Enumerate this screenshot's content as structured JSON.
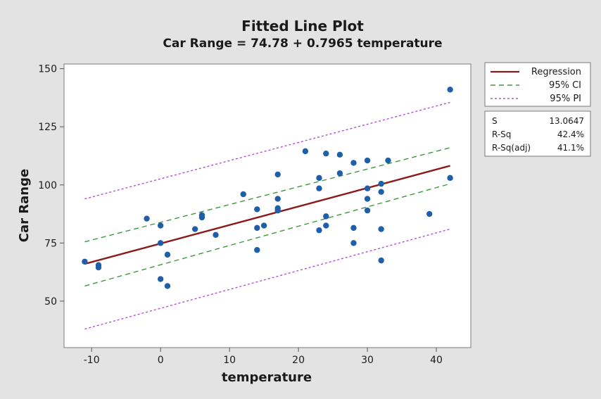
{
  "chart_data": {
    "type": "scatter",
    "title": "Fitted Line Plot",
    "subtitle": "Car Range = 74.78 + 0.7965 temperature",
    "xlabel": "temperature",
    "ylabel": "Car Range",
    "xlim": [
      -14,
      45
    ],
    "ylim": [
      30,
      152
    ],
    "xticks": [
      -10,
      0,
      10,
      20,
      30,
      40
    ],
    "yticks": [
      50,
      75,
      100,
      125,
      150
    ],
    "points": [
      [
        -11,
        67
      ],
      [
        -9,
        64.5
      ],
      [
        -9,
        65.5
      ],
      [
        -2,
        85.5
      ],
      [
        0,
        82.5
      ],
      [
        0,
        75
      ],
      [
        0,
        59.5
      ],
      [
        1,
        70
      ],
      [
        1,
        56.5
      ],
      [
        5,
        81
      ],
      [
        6,
        87
      ],
      [
        6,
        86
      ],
      [
        8,
        78.5
      ],
      [
        12,
        96
      ],
      [
        14,
        89.5
      ],
      [
        14,
        81.5
      ],
      [
        14,
        72
      ],
      [
        15,
        82.5
      ],
      [
        17,
        104.5
      ],
      [
        17,
        94
      ],
      [
        17,
        90
      ],
      [
        17,
        89
      ],
      [
        21,
        114.5
      ],
      [
        23,
        103
      ],
      [
        23,
        98.5
      ],
      [
        23,
        80.5
      ],
      [
        24,
        113.5
      ],
      [
        24,
        86.5
      ],
      [
        24,
        82.5
      ],
      [
        26,
        113
      ],
      [
        26,
        105
      ],
      [
        28,
        109.5
      ],
      [
        28,
        81.5
      ],
      [
        28,
        75
      ],
      [
        30,
        110.5
      ],
      [
        30,
        98.5
      ],
      [
        30,
        94
      ],
      [
        30,
        89
      ],
      [
        32,
        100.5
      ],
      [
        32,
        97
      ],
      [
        32,
        81
      ],
      [
        32,
        67.5
      ],
      [
        33,
        110.5
      ],
      [
        39,
        87.5
      ],
      [
        42,
        141
      ],
      [
        42,
        103
      ]
    ],
    "regression": {
      "intercept": 74.78,
      "slope": 0.7965,
      "x_range": [
        -11,
        42
      ]
    },
    "ci_band": {
      "x": [
        -11,
        42
      ],
      "lower": [
        56.5,
        100.5
      ],
      "upper": [
        75.5,
        116
      ]
    },
    "pi_band": {
      "x": [
        -11,
        42
      ],
      "lower": [
        38,
        81
      ],
      "upper": [
        94,
        135.5
      ]
    },
    "colors": {
      "regression": "#8b1a1a",
      "ci": "#3c9a3c",
      "pi": "#b04fd6",
      "points": "#1f5ea8"
    },
    "legend": {
      "placement": "right",
      "entries": [
        {
          "label": "Regression",
          "style": "solid"
        },
        {
          "label": "95% CI",
          "style": "dashed"
        },
        {
          "label": "95% PI",
          "style": "dotted"
        }
      ]
    },
    "stats": [
      {
        "label": "S",
        "value": "13.0647"
      },
      {
        "label": "R-Sq",
        "value": "42.4%"
      },
      {
        "label": "R-Sq(adj)",
        "value": "41.1%"
      }
    ]
  }
}
